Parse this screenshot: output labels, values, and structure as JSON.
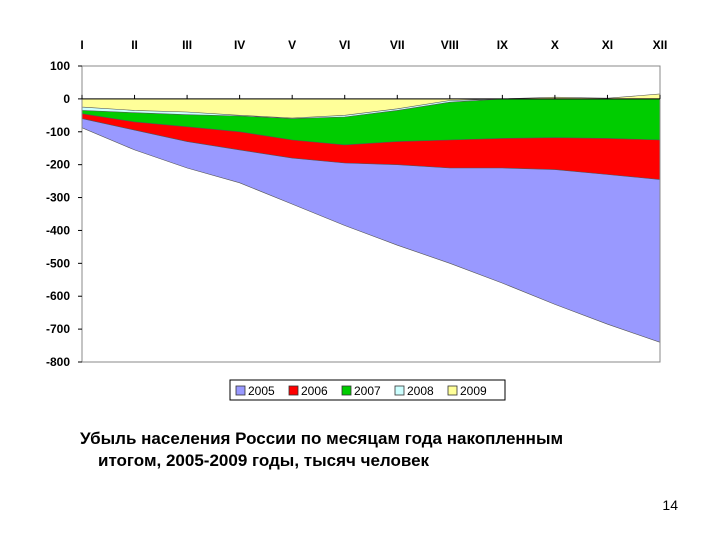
{
  "chart_data": {
    "type": "area",
    "title": "",
    "xlabel": "",
    "ylabel": "",
    "categories": [
      "I",
      "II",
      "III",
      "IV",
      "V",
      "VI",
      "VII",
      "VIII",
      "IX",
      "X",
      "XI",
      "XII"
    ],
    "ylim": [
      -800,
      100
    ],
    "yticks": [
      100,
      0,
      -100,
      -200,
      -300,
      -400,
      -500,
      -600,
      -700,
      -800
    ],
    "ytick_labels": [
      "100",
      "0",
      "-100",
      "-200",
      "-300",
      "-400",
      "-500",
      "-600",
      "-700",
      "-800"
    ],
    "grid": false,
    "legend_position": "bottom",
    "series": [
      {
        "name": "2005",
        "color": "#9999ff",
        "values": [
          -88,
          -155,
          -210,
          -255,
          -320,
          -385,
          -445,
          -500,
          -560,
          -625,
          -685,
          -740
        ]
      },
      {
        "name": "2006",
        "color": "#ff0000",
        "values": [
          -60,
          -95,
          -130,
          -155,
          -180,
          -195,
          -200,
          -210,
          -210,
          -215,
          -230,
          -245
        ]
      },
      {
        "name": "2007",
        "color": "#00cc00",
        "values": [
          -45,
          -70,
          -85,
          -100,
          -125,
          -140,
          -130,
          -125,
          -120,
          -118,
          -120,
          -125
        ]
      },
      {
        "name": "2008",
        "color": "#ccffff",
        "values": [
          -35,
          -42,
          -48,
          -52,
          -60,
          -55,
          -35,
          -10,
          0,
          2,
          0,
          2
        ]
      },
      {
        "name": "2009",
        "color": "#ffff99",
        "values": [
          -25,
          -35,
          -40,
          -50,
          -58,
          -50,
          -30,
          -5,
          0,
          5,
          2,
          15
        ]
      }
    ]
  },
  "caption": {
    "line1": "Убыль населения России по месяцам года накопленным",
    "line2": "итогом, 2005-2009 годы, тысяч человек"
  },
  "page_number": "14"
}
